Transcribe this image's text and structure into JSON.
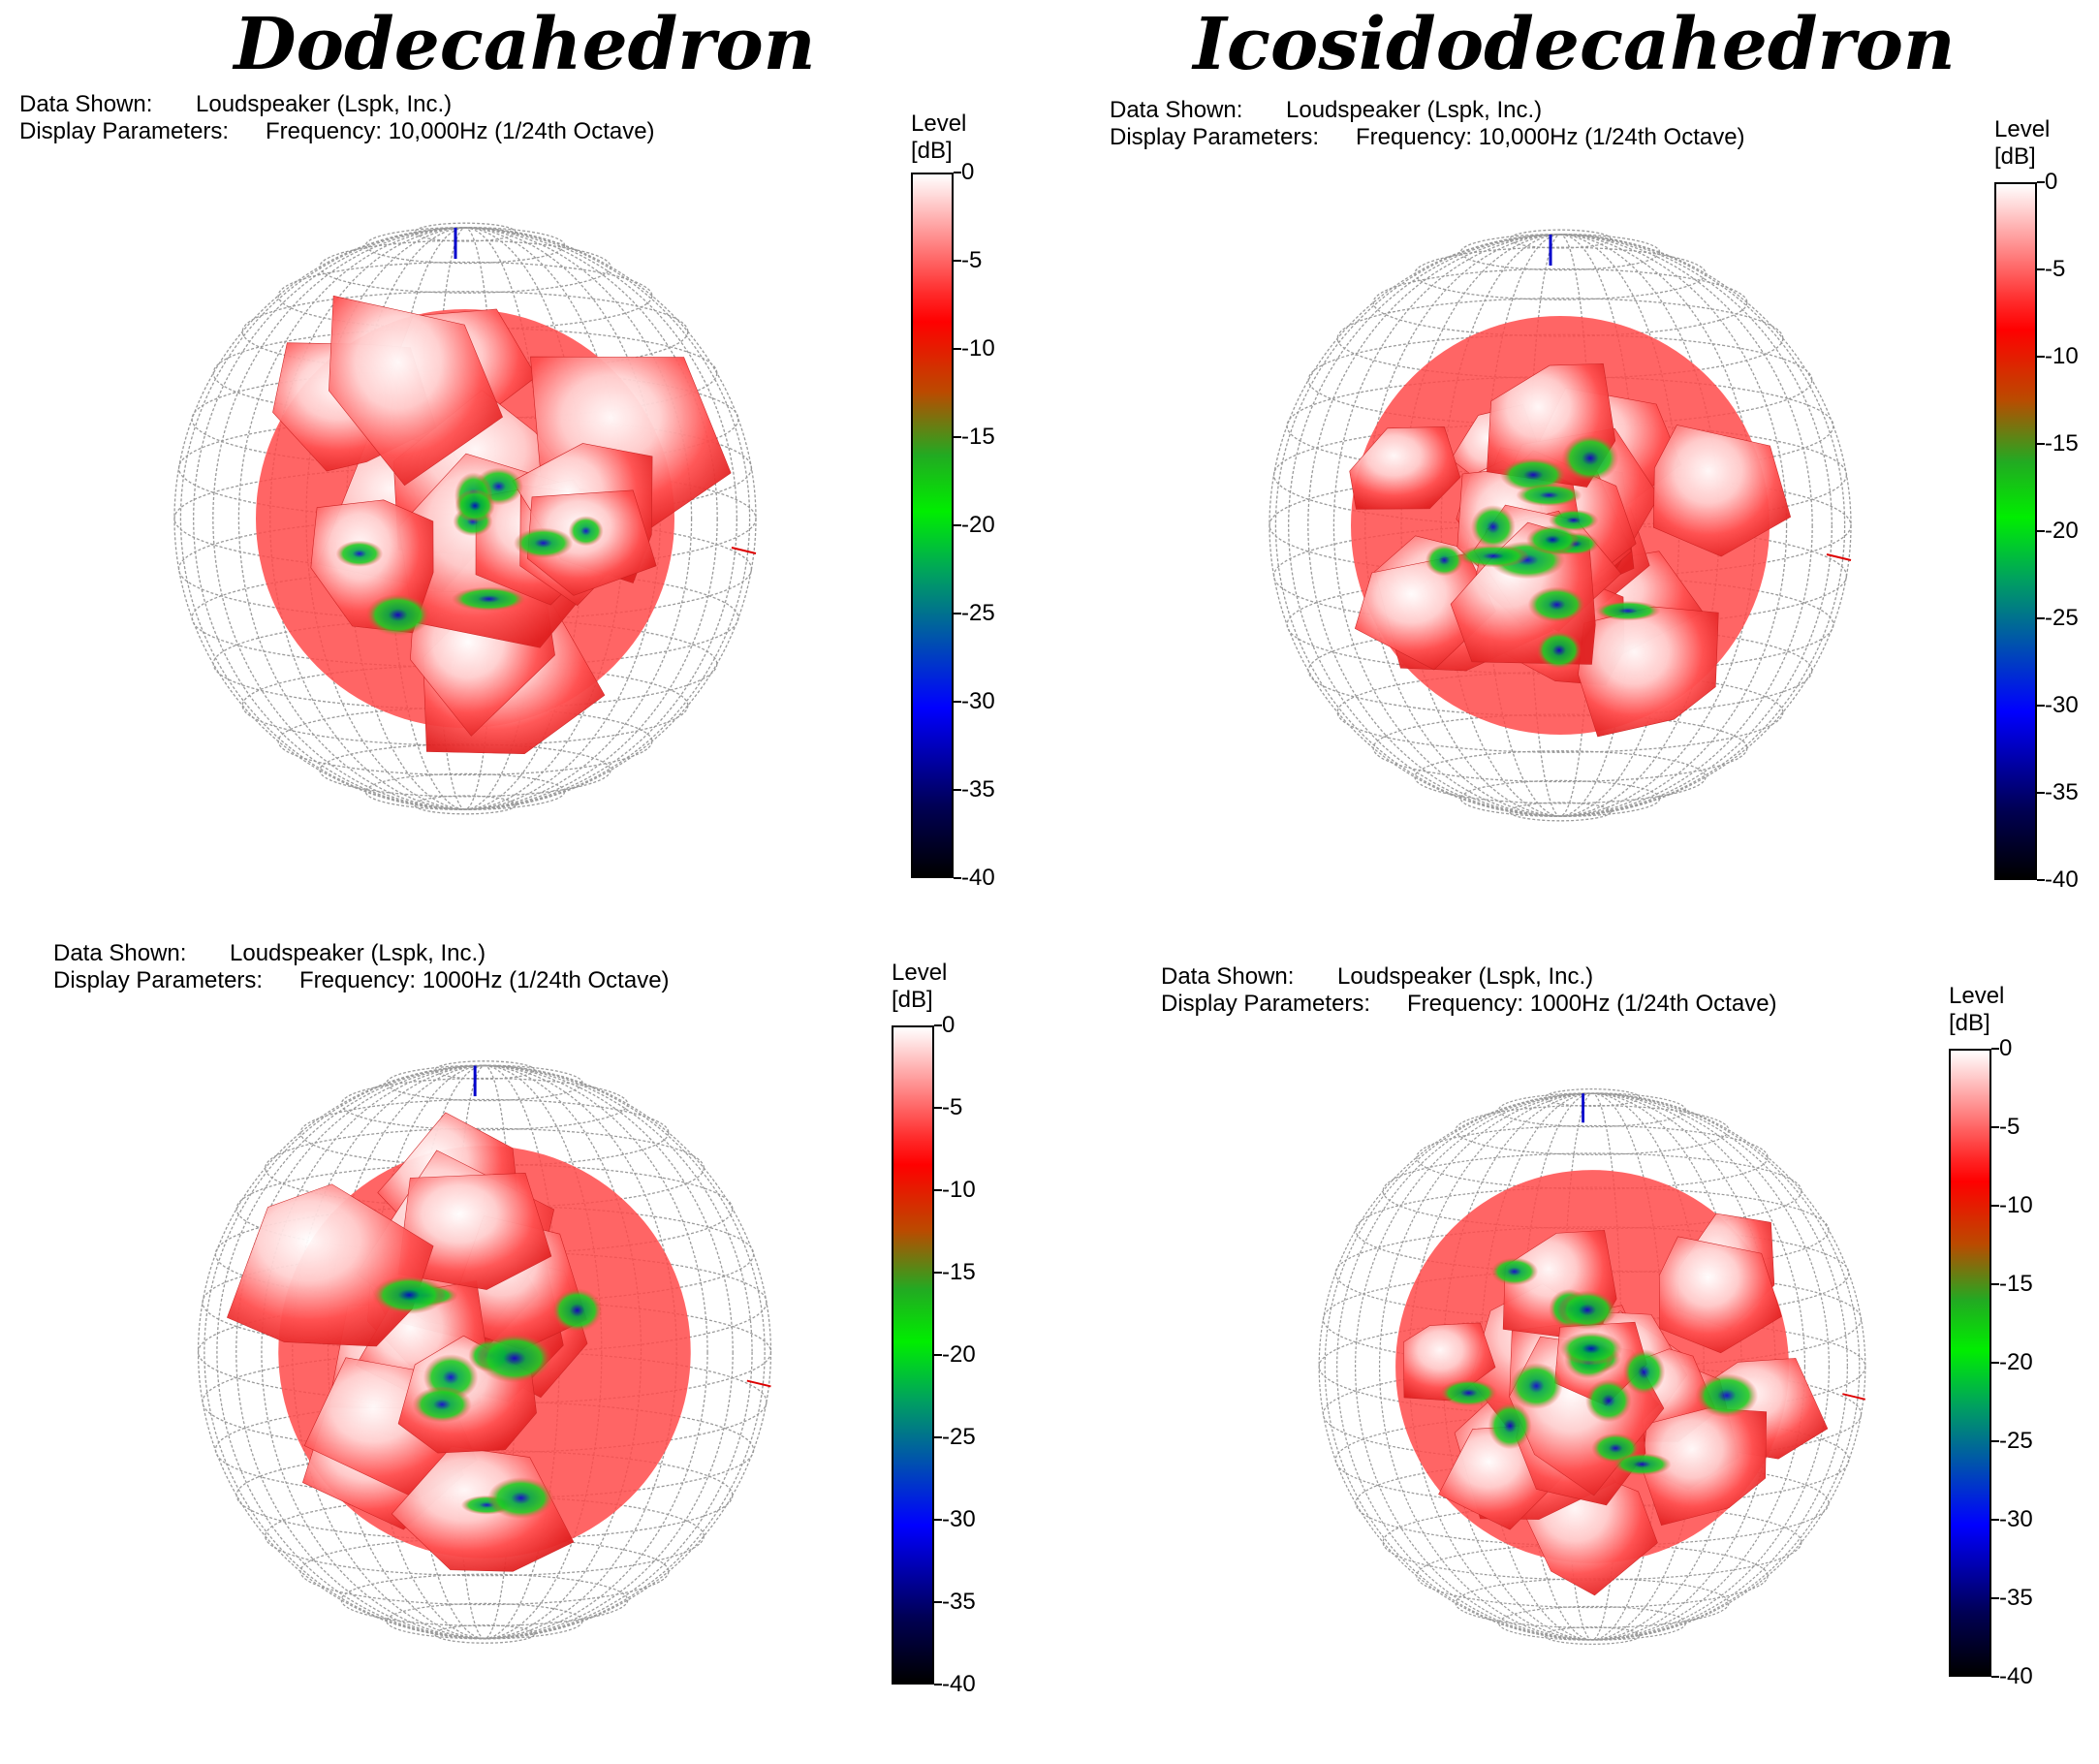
{
  "titles": {
    "left": "Dodecahedron",
    "right": "Icosidodecahedron"
  },
  "labels": {
    "data_shown": "Data Shown:",
    "display_parameters": "Display Parameters:"
  },
  "panels": [
    {
      "data_shown": "Loudspeaker (Lspk, Inc.)",
      "display": "Frequency: 10,000Hz (1/24th Octave)"
    },
    {
      "data_shown": "Loudspeaker (Lspk, Inc.)",
      "display": "Frequency: 10,000Hz (1/24th Octave)"
    },
    {
      "data_shown": "Loudspeaker (Lspk, Inc.)",
      "display": "Frequency: 1000Hz (1/24th Octave)"
    },
    {
      "data_shown": "Loudspeaker (Lspk, Inc.)",
      "display": "Frequency: 1000Hz (1/24th Octave)"
    }
  ],
  "colorbar": {
    "title_line1": "Level",
    "title_line2": "[dB]",
    "ticks": [
      "0",
      "-5",
      "-10",
      "-15",
      "-20",
      "-25",
      "-30",
      "-35",
      "-40"
    ],
    "range": [
      -40,
      0
    ]
  },
  "colors": {
    "high": "#ffffff",
    "mid_high": "#ff0000",
    "mid": "#00cc00",
    "low": "#0000ff",
    "floor": "#000000",
    "grid": "#999999"
  },
  "chart_data": [
    {
      "type": "heatmap",
      "title": "Dodecahedron",
      "subtitle": "Frequency: 10,000Hz (1/24th Octave)",
      "colorbar_label": "Level [dB]",
      "range": [
        -40,
        0
      ],
      "shape": "dodecahedron",
      "frequency": "10,000Hz"
    },
    {
      "type": "heatmap",
      "title": "Icosidodecahedron",
      "subtitle": "Frequency: 10,000Hz (1/24th Octave)",
      "colorbar_label": "Level [dB]",
      "range": [
        -40,
        0
      ],
      "shape": "icosidodecahedron",
      "frequency": "10,000Hz"
    },
    {
      "type": "heatmap",
      "title": "Dodecahedron",
      "subtitle": "Frequency: 1000Hz (1/24th Octave)",
      "colorbar_label": "Level [dB]",
      "range": [
        -40,
        0
      ],
      "shape": "dodecahedron",
      "frequency": "1000Hz"
    },
    {
      "type": "heatmap",
      "title": "Icosidodecahedron",
      "subtitle": "Frequency: 1000Hz (1/24th Octave)",
      "colorbar_label": "Level [dB]",
      "range": [
        -40,
        0
      ],
      "shape": "icosidodecahedron",
      "frequency": "1000Hz"
    }
  ]
}
